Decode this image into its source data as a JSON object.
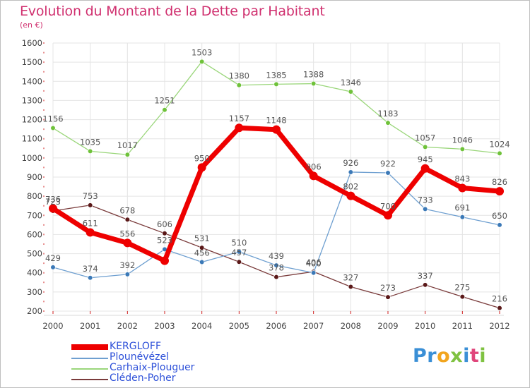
{
  "title": "Evolution du Montant de la Dette par Habitant",
  "subtitle": "(en €)",
  "logo": {
    "text": "Proxiti",
    "letters": [
      {
        "ch": "P",
        "color": "#3a8fd6"
      },
      {
        "ch": "r",
        "color": "#3a8fd6"
      },
      {
        "ch": "o",
        "color": "#f2a51e"
      },
      {
        "ch": "x",
        "color": "#7fc241"
      },
      {
        "ch": "i",
        "color": "#3a8fd6"
      },
      {
        "ch": "t",
        "color": "#e0457b"
      },
      {
        "ch": "i",
        "color": "#7fc241"
      }
    ]
  },
  "chart_data": {
    "type": "line",
    "title": "Evolution du Montant de la Dette par Habitant",
    "subtitle": "(en €)",
    "xlabel": "",
    "ylabel": "",
    "ylim": [
      200,
      1600
    ],
    "yticks": [
      200,
      300,
      400,
      500,
      600,
      700,
      800,
      900,
      1000,
      1100,
      1200,
      1300,
      1400,
      1500,
      1600
    ],
    "grid": true,
    "legend_position": "bottom-left",
    "categories": [
      "2000",
      "2001",
      "2002",
      "2003",
      "2004",
      "2005",
      "2006",
      "2007",
      "2008",
      "2009",
      "2010",
      "2011",
      "2012"
    ],
    "series": [
      {
        "name": "KERGLOFF",
        "values": [
          736,
          611,
          556,
          463,
          950,
          1157,
          1148,
          906,
          802,
          700,
          945,
          843,
          826
        ],
        "labels": [
          "736",
          "611",
          "556",
          "",
          "950",
          "1157",
          "1148",
          "906",
          "802",
          "700",
          "945",
          "843",
          "826"
        ],
        "color": "#ee0000",
        "marker_color": "#ee0000",
        "legend_color": "#ee0000",
        "width": 7,
        "marker_r": 6
      },
      {
        "name": "Plounévézel",
        "values": [
          429,
          374,
          392,
          523,
          456,
          510,
          439,
          400,
          926,
          922,
          733,
          691,
          650
        ],
        "labels": [
          "429",
          "374",
          "392",
          "523",
          "456",
          "510",
          "439",
          "400",
          "926",
          "922",
          "733",
          "691",
          "650"
        ],
        "color": "#6e9fd0",
        "marker_color": "#3b79b7",
        "legend_color": "#2d50d9",
        "width": 1.3,
        "marker_r": 3.3
      },
      {
        "name": "Carhaix-Plouguer",
        "values": [
          1156,
          1035,
          1017,
          1251,
          1503,
          1380,
          1385,
          1388,
          1346,
          1183,
          1057,
          1046,
          1024
        ],
        "labels": [
          "1156",
          "1035",
          "1017",
          "1251",
          "1503",
          "1380",
          "1385",
          "1388",
          "1346",
          "1183",
          "1057",
          "1046",
          "1024"
        ],
        "color": "#9ad67a",
        "marker_color": "#6fc23a",
        "legend_color": "#2d50d9",
        "width": 1.3,
        "marker_r": 3.3
      },
      {
        "name": "Cléden-Poher",
        "values": [
          723,
          753,
          678,
          606,
          531,
          457,
          378,
          406,
          327,
          273,
          337,
          275,
          216
        ],
        "labels": [
          "723",
          "753",
          "678",
          "606",
          "531",
          "457",
          "378",
          "406",
          "327",
          "273",
          "337",
          "275",
          "216"
        ],
        "color": "#7a3b3b",
        "marker_color": "#5a1818",
        "legend_color": "#2d50d9",
        "width": 1.3,
        "marker_r": 3.3
      }
    ]
  }
}
